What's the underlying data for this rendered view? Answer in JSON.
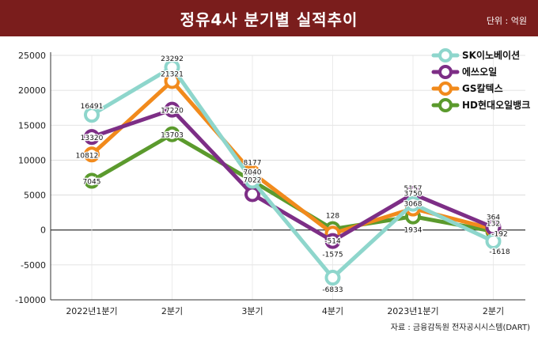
{
  "header": {
    "title": "정유4사 분기별 실적추이",
    "unit": "단위 : 억원"
  },
  "source": "자료 : 금융감독원 전자공시시스템(DART)",
  "colors": {
    "banner": "#7a1d1c",
    "SK이노베이션": "#8ed6cc",
    "에쓰오일": "#7d2e86",
    "GS칼텍스": "#f18a1c",
    "HD현대오일뱅크": "#5b9a2d"
  },
  "chart_data": {
    "type": "line",
    "categories": [
      "2022년1분기",
      "2분기",
      "3분기",
      "4분기",
      "2023년1분기",
      "2분기"
    ],
    "ylim": [
      -10000,
      25000
    ],
    "yticks": [
      "25000",
      "20000",
      "15000",
      "10000",
      "5000",
      "0",
      "-5000",
      "-10000"
    ],
    "grid": true,
    "legend_position": "top-right",
    "series": [
      {
        "name": "HD현대오일뱅크",
        "color": "#5b9a2d",
        "values": [
          7045,
          13703,
          7022,
          128,
          1934,
          -192
        ],
        "labels": [
          "7045",
          "13703",
          "7022",
          "128",
          "1934",
          "-192"
        ]
      },
      {
        "name": "GS칼텍스",
        "color": "#f18a1c",
        "values": [
          10812,
          21321,
          8177,
          -514,
          3068,
          132
        ],
        "labels": [
          "10812",
          "21321",
          "8177",
          "-514",
          "3068",
          "132"
        ]
      },
      {
        "name": "에쓰오일",
        "color": "#7d2e86",
        "values": [
          13320,
          17220,
          5117,
          -1575,
          5157,
          364
        ],
        "labels": [
          "13320",
          "17220",
          "5117",
          "-1575",
          "5157",
          "364"
        ]
      },
      {
        "name": "SK이노베이션",
        "color": "#8ed6cc",
        "values": [
          16491,
          23292,
          7040,
          -6833,
          3750,
          -1618
        ],
        "labels": [
          "16491",
          "23292",
          "7040",
          "-6833",
          "3750",
          "-1618"
        ]
      }
    ],
    "legend_order": [
      "SK이노베이션",
      "에쓰오일",
      "GS칼텍스",
      "HD현대오일뱅크"
    ]
  }
}
